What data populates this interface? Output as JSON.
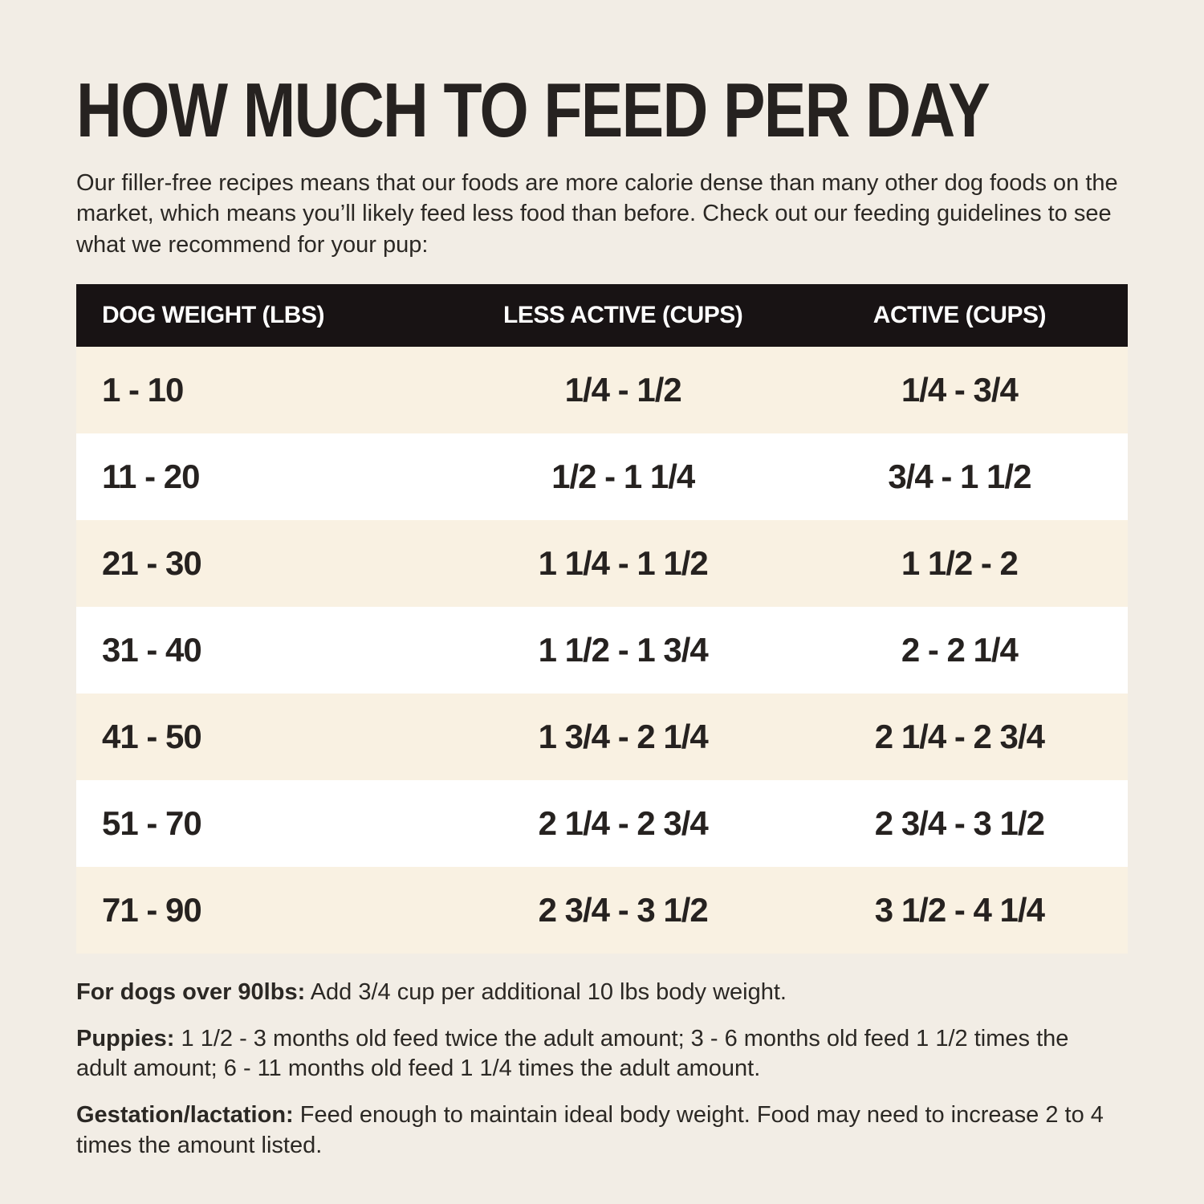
{
  "chart_data": {
    "type": "table",
    "title": "HOW MUCH TO FEED PER DAY",
    "columns": [
      "DOG WEIGHT (LBS)",
      "LESS ACTIVE (CUPS)",
      "ACTIVE (CUPS)"
    ],
    "rows": [
      [
        "1 - 10",
        "1/4 - 1/2",
        "1/4 - 3/4"
      ],
      [
        "11 - 20",
        "1/2 - 1 1/4",
        "3/4 - 1 1/2"
      ],
      [
        "21 - 30",
        "1 1/4 - 1 1/2",
        "1 1/2 - 2"
      ],
      [
        "31 - 40",
        "1 1/2 - 1 3/4",
        "2 - 2 1/4"
      ],
      [
        "41 - 50",
        "1 3/4 - 2 1/4",
        "2 1/4 - 2 3/4"
      ],
      [
        "51 - 70",
        "2 1/4 - 2 3/4",
        "2 3/4 - 3 1/2"
      ],
      [
        "71 - 90",
        "2 3/4 - 3 1/2",
        "3 1/2 - 4 1/4"
      ]
    ]
  },
  "page": {
    "intro": "Our filler-free recipes means that our foods are more calorie dense than many other dog foods on the market, which means you’ll likely feed less food than before. Check out our feeding guidelines to see what we recommend for your pup:"
  },
  "notes": [
    {
      "label": "For dogs over 90lbs:",
      "text": " Add 3/4 cup per additional 10 lbs body weight."
    },
    {
      "label": "Puppies:",
      "text": " 1 1/2 - 3 months old feed twice the adult amount; 3 - 6 months old feed 1 1/2 times the adult amount; 6 - 11 months old feed 1 1/4 times the adult amount."
    },
    {
      "label": "Gestation/lactation:",
      "text": " Feed enough to maintain ideal body weight. Food may need to increase 2 to 4 times the amount listed."
    }
  ],
  "colors": {
    "page_bg": "#f2ede5",
    "header_bg": "#181314",
    "row_alt_bg": "#f9f1e2",
    "row_bg": "#ffffff",
    "text": "#2b2824"
  }
}
